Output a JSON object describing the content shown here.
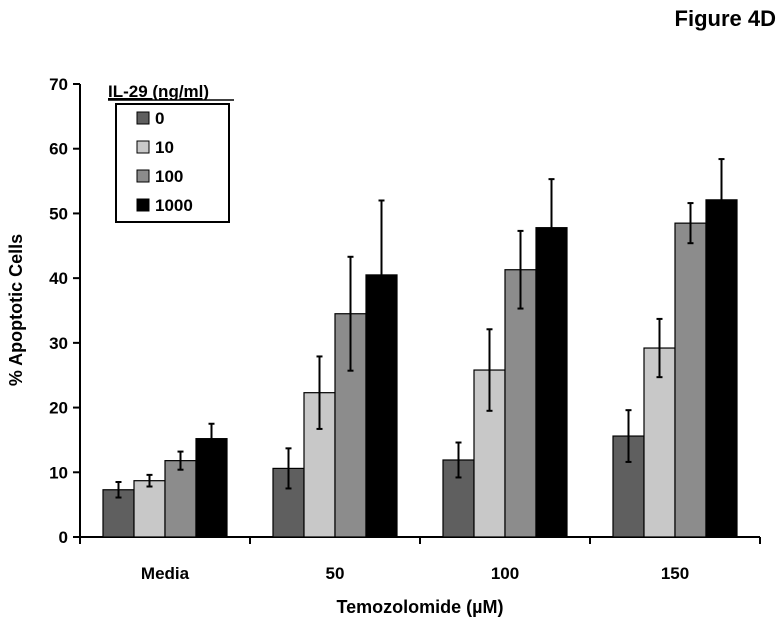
{
  "figure_label": "Figure 4D",
  "colors": {
    "series": [
      "#5f5f5f",
      "#c8c8c8",
      "#8c8c8c",
      "#000000"
    ],
    "stroke": "#000000"
  },
  "chart_data": {
    "type": "bar",
    "title": "",
    "xlabel": "Temozolomide (µM)",
    "ylabel": "% Apoptotic Cells",
    "ylim": [
      0,
      70
    ],
    "yticks": [
      0,
      10,
      20,
      30,
      40,
      50,
      60,
      70
    ],
    "grid": false,
    "legend": {
      "title": "IL-29 (ng/ml)",
      "placement": "top-left"
    },
    "categories": [
      "Media",
      "50",
      "100",
      "150"
    ],
    "series": [
      {
        "name": "0",
        "values": [
          7.3,
          10.6,
          11.9,
          15.6
        ],
        "errors": [
          1.2,
          3.1,
          2.7,
          4.0
        ]
      },
      {
        "name": "10",
        "values": [
          8.7,
          22.3,
          25.8,
          29.2
        ],
        "errors": [
          0.9,
          5.6,
          6.3,
          4.5
        ]
      },
      {
        "name": "100",
        "values": [
          11.8,
          34.5,
          41.3,
          48.5
        ],
        "errors": [
          1.4,
          8.8,
          6.0,
          3.1
        ]
      },
      {
        "name": "1000",
        "values": [
          15.2,
          40.5,
          47.8,
          52.1
        ],
        "errors": [
          2.3,
          11.5,
          7.5,
          6.3
        ]
      }
    ]
  }
}
